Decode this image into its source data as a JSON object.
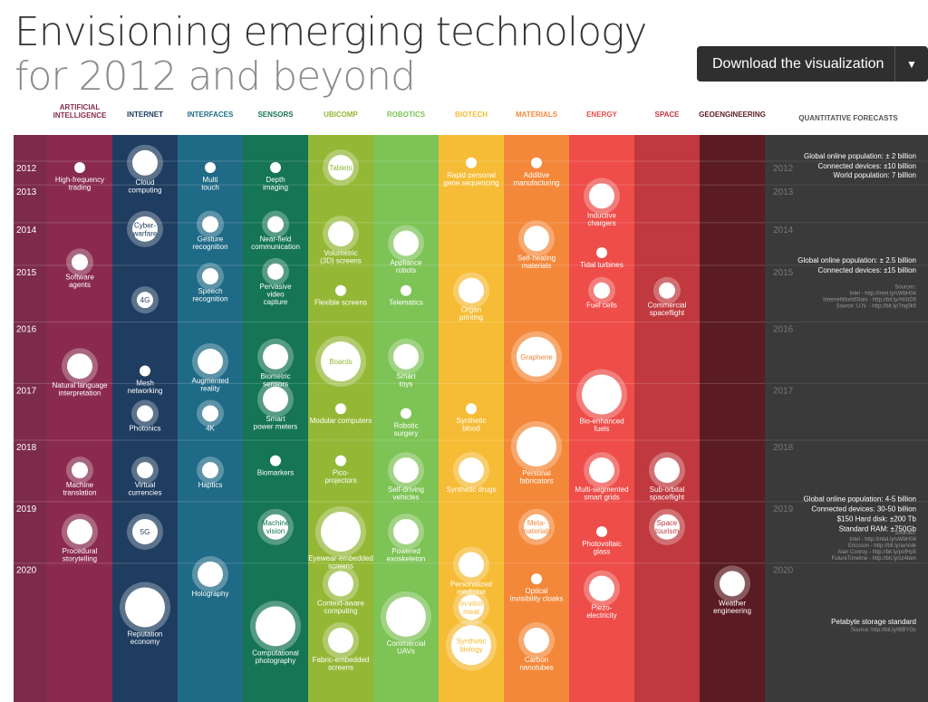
{
  "header": {
    "title_line1": "Envisioning emerging technology",
    "title_line2": "for 2012 and beyond",
    "download_label": "Download the visualization",
    "download_caret": "▼"
  },
  "years": [
    {
      "label": "2012",
      "v": 2012.0
    },
    {
      "label": "2013",
      "v": 2012.5
    },
    {
      "label": "2014",
      "v": 2013.3
    },
    {
      "label": "2015",
      "v": 2014.2
    },
    {
      "label": "2016",
      "v": 2015.4
    },
    {
      "label": "2017",
      "v": 2016.7
    },
    {
      "label": "2018",
      "v": 2017.9
    },
    {
      "label": "2019",
      "v": 2019.2
    },
    {
      "label": "2020",
      "v": 2020.5
    }
  ],
  "forecast_header": "QUANTITATIVE FORECASTS",
  "categories": [
    {
      "key": "ai",
      "label": "ARTIFICIAL\nINTELLIGENCE",
      "color": "#8a2a4e",
      "head": "#8a2a4e"
    },
    {
      "key": "internet",
      "label": "INTERNET",
      "color": "#1f3d60",
      "head": "#1f3d60"
    },
    {
      "key": "interfaces",
      "label": "INTERFACES",
      "color": "#1f6a86",
      "head": "#1f6a86"
    },
    {
      "key": "sensors",
      "label": "SENSORS",
      "color": "#157554",
      "head": "#157554"
    },
    {
      "key": "ubicomp",
      "label": "UBICOMP",
      "color": "#94b836",
      "head": "#94b836"
    },
    {
      "key": "robotics",
      "label": "ROBOTICS",
      "color": "#7dc355",
      "head": "#7dc355"
    },
    {
      "key": "biotech",
      "label": "BIOTECH",
      "color": "#f6bc35",
      "head": "#f6bc35"
    },
    {
      "key": "materials",
      "label": "MATERIALS",
      "color": "#f4883a",
      "head": "#f4883a"
    },
    {
      "key": "energy",
      "label": "ENERGY",
      "color": "#ee4d49",
      "head": "#ee4d49"
    },
    {
      "key": "space",
      "label": "SPACE",
      "color": "#c0393f",
      "head": "#c0393f"
    },
    {
      "key": "geo",
      "label": "GEOENGINEERING",
      "color": "#5a1b22",
      "head": "#5a1b22"
    }
  ],
  "items": [
    {
      "col": 0,
      "label": "High-frequency\ntrading",
      "y": 2012.0,
      "s": 1
    },
    {
      "col": 0,
      "label": "Software\nagents",
      "y": 2014.0,
      "s": 2
    },
    {
      "col": 0,
      "label": "Natural language\ninterpretation",
      "y": 2016.2,
      "s": 3
    },
    {
      "col": 0,
      "label": "Machine\ntranslation",
      "y": 2018.4,
      "s": 2
    },
    {
      "col": 0,
      "label": "Procedural\nstorytelling",
      "y": 2019.7,
      "s": 3
    },
    {
      "col": 1,
      "label": "Cloud\ncomputing",
      "y": 2011.9,
      "s": 3
    },
    {
      "col": 1,
      "label": "Cyber-\nwarfare",
      "y": 2013.3,
      "s": 3,
      "inside": true
    },
    {
      "col": 1,
      "label": "4G",
      "y": 2014.8,
      "s": 2,
      "inside": true
    },
    {
      "col": 1,
      "label": "Mesh\nnetworking",
      "y": 2016.3,
      "s": 1
    },
    {
      "col": 1,
      "label": "Photonics",
      "y": 2017.2,
      "s": 2
    },
    {
      "col": 1,
      "label": "Virtual\ncurrencies",
      "y": 2018.4,
      "s": 2
    },
    {
      "col": 1,
      "label": "5G",
      "y": 2019.7,
      "s": 3,
      "inside": true
    },
    {
      "col": 1,
      "label": "Reputation\neconomy",
      "y": 2021.3,
      "s": 4
    },
    {
      "col": 2,
      "label": "Multi\ntouch",
      "y": 2012.0,
      "s": 1
    },
    {
      "col": 2,
      "label": "Gesture\nrecognition",
      "y": 2013.2,
      "s": 2
    },
    {
      "col": 2,
      "label": "Speech\nrecognition",
      "y": 2014.3,
      "s": 2
    },
    {
      "col": 2,
      "label": "Augmented\nreality",
      "y": 2016.1,
      "s": 3
    },
    {
      "col": 2,
      "label": "4K",
      "y": 2017.2,
      "s": 2
    },
    {
      "col": 2,
      "label": "Haptics",
      "y": 2018.4,
      "s": 2
    },
    {
      "col": 2,
      "label": "Holography",
      "y": 2020.6,
      "s": 3
    },
    {
      "col": 3,
      "label": "Depth\nimaging",
      "y": 2012.0,
      "s": 1
    },
    {
      "col": 3,
      "label": "Near-field\ncommunication",
      "y": 2013.2,
      "s": 2
    },
    {
      "col": 3,
      "label": "Pervasive\nvideo\ncapture",
      "y": 2014.2,
      "s": 2
    },
    {
      "col": 3,
      "label": "Biometric\nsensors",
      "y": 2016.0,
      "s": 3
    },
    {
      "col": 3,
      "label": "Smart\npower meters",
      "y": 2016.9,
      "s": 3
    },
    {
      "col": 3,
      "label": "Biomarkers",
      "y": 2018.2,
      "s": 1
    },
    {
      "col": 3,
      "label": "Machine\nvision",
      "y": 2019.6,
      "s": 3,
      "inside": true
    },
    {
      "col": 3,
      "label": "Computational\nphotography",
      "y": 2021.7,
      "s": 4
    },
    {
      "col": 4,
      "label": "Tablets",
      "y": 2012.0,
      "s": 3,
      "inside": true
    },
    {
      "col": 4,
      "label": "Volumetric\n(3D) screens",
      "y": 2013.4,
      "s": 3
    },
    {
      "col": 4,
      "label": "Flexible screens",
      "y": 2014.6,
      "s": 1
    },
    {
      "col": 4,
      "label": "Boards",
      "y": 2016.1,
      "s": 4,
      "inside": true
    },
    {
      "col": 4,
      "label": "Modular computers",
      "y": 2017.1,
      "s": 1
    },
    {
      "col": 4,
      "label": "Pico-\nprojectors",
      "y": 2018.2,
      "s": 1
    },
    {
      "col": 4,
      "label": "Eyewear-embedded\nscreens",
      "y": 2019.7,
      "s": 4
    },
    {
      "col": 4,
      "label": "Context-aware\ncomputing",
      "y": 2020.8,
      "s": 3
    },
    {
      "col": 4,
      "label": "Fabric-embedded\nscreens",
      "y": 2022.0,
      "s": 3
    },
    {
      "col": 5,
      "label": "Appliance\nrobots",
      "y": 2013.6,
      "s": 3
    },
    {
      "col": 5,
      "label": "Telematics",
      "y": 2014.6,
      "s": 1
    },
    {
      "col": 5,
      "label": "Smart\ntoys",
      "y": 2016.0,
      "s": 3
    },
    {
      "col": 5,
      "label": "Robotic\nsurgery",
      "y": 2017.2,
      "s": 1
    },
    {
      "col": 5,
      "label": "Self-driving\nvehicles",
      "y": 2018.4,
      "s": 3
    },
    {
      "col": 5,
      "label": "Powered\nexoskeleton",
      "y": 2019.7,
      "s": 3
    },
    {
      "col": 5,
      "label": "Commercial\nUAVs",
      "y": 2021.5,
      "s": 4
    },
    {
      "col": 6,
      "label": "Rapid personal\ngene sequencing",
      "y": 2011.9,
      "s": 1
    },
    {
      "col": 6,
      "label": "Organ\nprinting",
      "y": 2014.6,
      "s": 3
    },
    {
      "col": 6,
      "label": "Synthetic\nblood",
      "y": 2017.1,
      "s": 1
    },
    {
      "col": 6,
      "label": "Synthetic drugs",
      "y": 2018.4,
      "s": 3
    },
    {
      "col": 6,
      "label": "Personalized\nmedicine",
      "y": 2020.4,
      "s": 3
    },
    {
      "col": 6,
      "label": "In-vitro\nmeat",
      "y": 2021.3,
      "s": 3,
      "inside": true
    },
    {
      "col": 6,
      "label": "Synthetic\nbiology",
      "y": 2022.1,
      "s": 4,
      "inside": true
    },
    {
      "col": 7,
      "label": "Additive\nmanufacturing",
      "y": 2011.9,
      "s": 1
    },
    {
      "col": 7,
      "label": "Self-healing\nmaterials",
      "y": 2013.5,
      "s": 3
    },
    {
      "col": 7,
      "label": "Graphene",
      "y": 2016.0,
      "s": 4,
      "inside": true
    },
    {
      "col": 7,
      "label": "Personal\nfabricators",
      "y": 2017.9,
      "s": 4
    },
    {
      "col": 7,
      "label": "Meta-\nmaterials",
      "y": 2019.6,
      "s": 3,
      "inside": true
    },
    {
      "col": 7,
      "label": "Optical\ninvisibility cloaks",
      "y": 2020.7,
      "s": 1
    },
    {
      "col": 7,
      "label": "Carbon\nnanotubes",
      "y": 2022.0,
      "s": 3
    },
    {
      "col": 8,
      "label": "Inductive\nchargers",
      "y": 2012.6,
      "s": 3
    },
    {
      "col": 8,
      "label": "Tidal turbines",
      "y": 2013.8,
      "s": 1
    },
    {
      "col": 8,
      "label": "Fuel cells",
      "y": 2014.6,
      "s": 2
    },
    {
      "col": 8,
      "label": "Bio-enhanced\nfuels",
      "y": 2016.8,
      "s": 4
    },
    {
      "col": 8,
      "label": "Multi-segmented\nsmart grids",
      "y": 2018.4,
      "s": 3
    },
    {
      "col": 8,
      "label": "Photovoltaic\nglass",
      "y": 2019.7,
      "s": 1
    },
    {
      "col": 8,
      "label": "Piezo-\nelectricity",
      "y": 2020.9,
      "s": 3
    },
    {
      "col": 9,
      "label": "Commercial\nspaceflight",
      "y": 2014.6,
      "s": 2
    },
    {
      "col": 9,
      "label": "Sub-orbital\nspaceflight",
      "y": 2018.4,
      "s": 3
    },
    {
      "col": 9,
      "label": "Space\ntourism",
      "y": 2019.6,
      "s": 3,
      "inside": true
    },
    {
      "col": 10,
      "label": "Weather\nengineering",
      "y": 2020.8,
      "s": 3
    }
  ],
  "forecasts": [
    {
      "v": 2012.0,
      "lines": [
        "Global online population: ± 2 billion",
        "Connected devices: ±10 billion"
      ],
      "small": false
    },
    {
      "v": 2012.4,
      "lines": [
        "World population: 7 billion"
      ],
      "small": false
    },
    {
      "v": 2014.2,
      "lines": [
        "Global online population: ± 2.5 billion",
        "Connected devices: ±15 billion"
      ],
      "small": false
    },
    {
      "v": 2014.75,
      "lines": [
        "Sources:",
        "Intel - http://intel.ly/sWbH04",
        "InternetWorldStats - http://bit.ly/AKbD5",
        "Source: U.N. - http://bit.ly/7nq0k5"
      ],
      "small": true
    },
    {
      "v": 2019.25,
      "lines": [
        "Global online population: 4-5 billion",
        "Connected devices: 30-50 billion",
        "$150 Hard disk: ±200 Tb",
        "Standard RAM: ±750Gb"
      ],
      "small": false
    },
    {
      "v": 2019.95,
      "lines": [
        "Sources:",
        "Intel - http://intel.ly/sWbH04",
        "Ericsson - http://bit.ly/avVolk",
        "Alan Conroy - http://bit.ly/pofHp5",
        "FutureTimeline - http://bit.ly/sz4ben"
      ],
      "small": true
    },
    {
      "v": 2021.85,
      "lines": [
        "Petabyte storage standard"
      ],
      "small": false
    },
    {
      "v": 2022.0,
      "lines": [
        "Source: http://bit.ly/t8BYGc"
      ],
      "small": true
    }
  ]
}
